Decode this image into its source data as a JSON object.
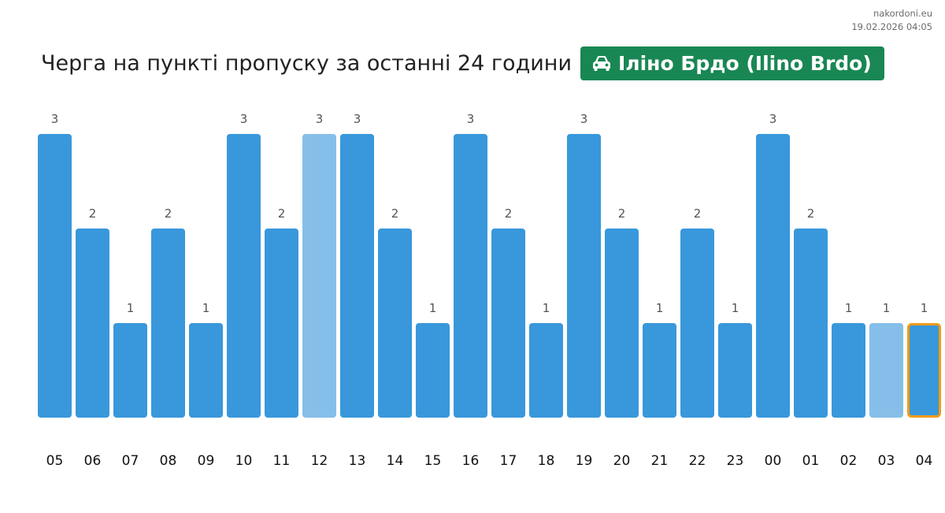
{
  "source": {
    "site": "nakordoni.eu",
    "timestamp": "19.02.2026 04:05"
  },
  "header": {
    "title": "Черга на пункті пропуску за останні 24 години",
    "badge_label": "Іліно Брдо (Ilino Brdo)",
    "badge_icon": "car-icon",
    "badge_color": "#198754"
  },
  "chart_data": {
    "type": "bar",
    "categories": [
      "05",
      "06",
      "07",
      "08",
      "09",
      "10",
      "11",
      "12",
      "13",
      "14",
      "15",
      "16",
      "17",
      "18",
      "19",
      "20",
      "21",
      "22",
      "23",
      "00",
      "01",
      "02",
      "03",
      "04"
    ],
    "values": [
      3,
      2,
      1,
      2,
      1,
      3,
      2,
      3,
      3,
      2,
      1,
      3,
      2,
      1,
      3,
      2,
      1,
      2,
      1,
      3,
      2,
      1,
      1,
      1
    ],
    "highlighted": [
      false,
      false,
      false,
      false,
      false,
      false,
      false,
      true,
      false,
      false,
      false,
      false,
      false,
      false,
      false,
      false,
      false,
      false,
      false,
      false,
      false,
      false,
      true,
      false
    ],
    "current": "04",
    "ylim": [
      0,
      3
    ],
    "colors": {
      "bar": "#3898db",
      "bar_light": "#85bfe9",
      "current_border": "#f39c12"
    },
    "grid": false,
    "title": "",
    "xlabel": "",
    "ylabel": ""
  }
}
